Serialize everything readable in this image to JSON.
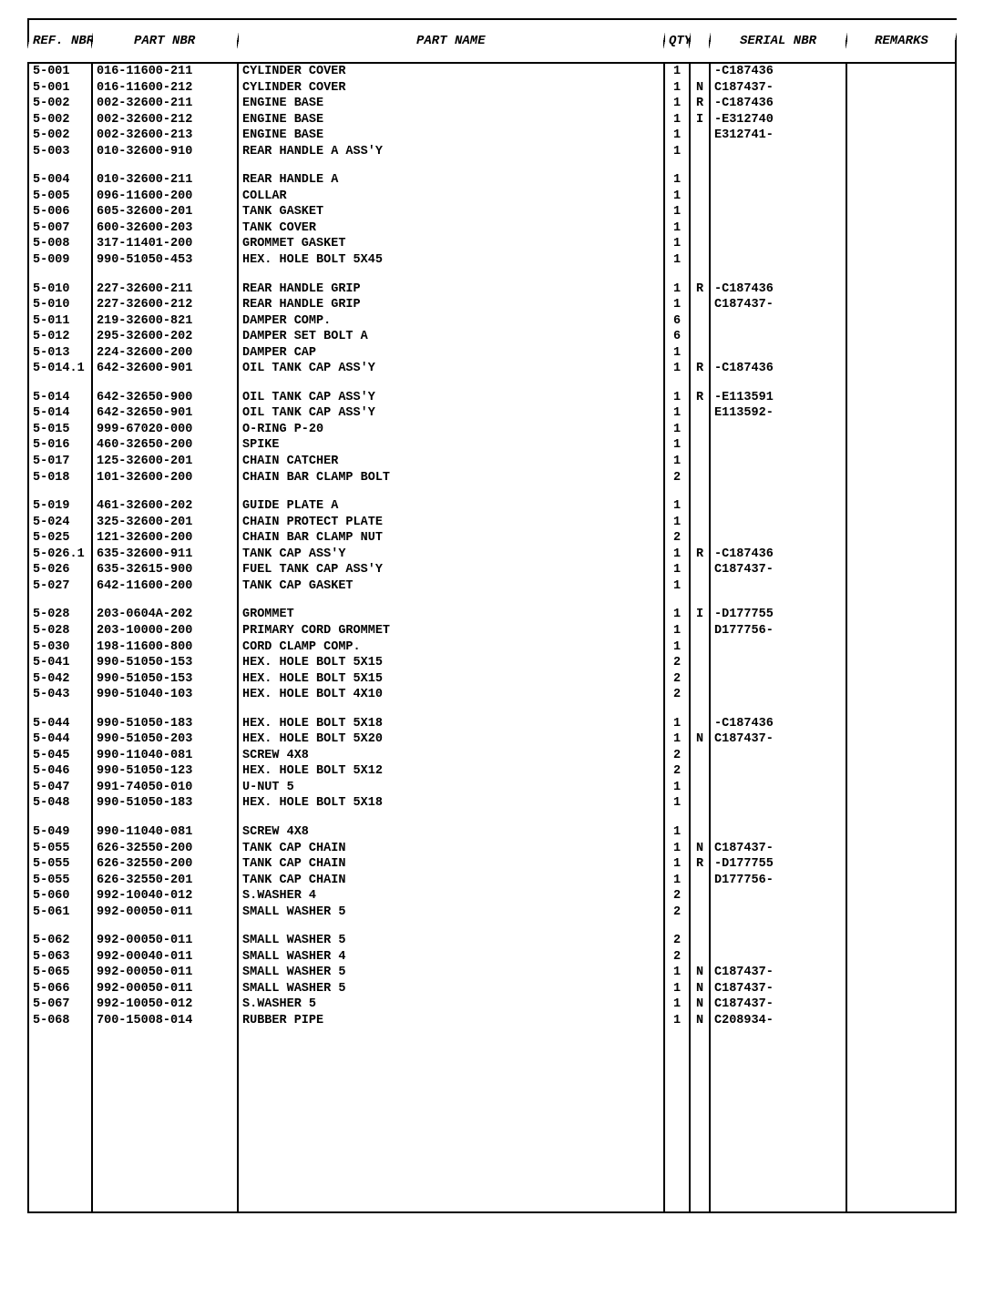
{
  "headers": {
    "ref": "REF. NBR",
    "part": "PART NBR",
    "name": "PART NAME",
    "qty": "QTY",
    "flag": "",
    "serial": "SERIAL NBR",
    "remarks": "REMARKS"
  },
  "groups": [
    [
      {
        "ref": "5-001",
        "part": "016-11600-211",
        "name": "CYLINDER COVER",
        "qty": "1",
        "flag": "",
        "serial": "-C187436"
      },
      {
        "ref": "5-001",
        "part": "016-11600-212",
        "name": "CYLINDER COVER",
        "qty": "1",
        "flag": "N",
        "serial": "C187437-"
      },
      {
        "ref": "5-002",
        "part": "002-32600-211",
        "name": "ENGINE BASE",
        "qty": "1",
        "flag": "R",
        "serial": "-C187436"
      },
      {
        "ref": "5-002",
        "part": "002-32600-212",
        "name": "ENGINE BASE",
        "qty": "1",
        "flag": "I",
        "serial": "-E312740"
      },
      {
        "ref": "5-002",
        "part": "002-32600-213",
        "name": "ENGINE BASE",
        "qty": "1",
        "flag": "",
        "serial": "E312741-"
      },
      {
        "ref": "5-003",
        "part": "010-32600-910",
        "name": "REAR HANDLE A ASS'Y",
        "qty": "1",
        "flag": "",
        "serial": ""
      }
    ],
    [
      {
        "ref": "5-004",
        "part": "010-32600-211",
        "name": "REAR HANDLE A",
        "qty": "1",
        "flag": "",
        "serial": ""
      },
      {
        "ref": "5-005",
        "part": "096-11600-200",
        "name": "COLLAR",
        "qty": "1",
        "flag": "",
        "serial": ""
      },
      {
        "ref": "5-006",
        "part": "605-32600-201",
        "name": "TANK GASKET",
        "qty": "1",
        "flag": "",
        "serial": ""
      },
      {
        "ref": "5-007",
        "part": "600-32600-203",
        "name": "TANK COVER",
        "qty": "1",
        "flag": "",
        "serial": ""
      },
      {
        "ref": "5-008",
        "part": "317-11401-200",
        "name": "GROMMET GASKET",
        "qty": "1",
        "flag": "",
        "serial": ""
      },
      {
        "ref": "5-009",
        "part": "990-51050-453",
        "name": "HEX. HOLE BOLT 5X45",
        "qty": "1",
        "flag": "",
        "serial": ""
      }
    ],
    [
      {
        "ref": "5-010",
        "part": "227-32600-211",
        "name": "REAR HANDLE GRIP",
        "qty": "1",
        "flag": "R",
        "serial": "-C187436"
      },
      {
        "ref": "5-010",
        "part": "227-32600-212",
        "name": "REAR HANDLE GRIP",
        "qty": "1",
        "flag": "",
        "serial": "C187437-"
      },
      {
        "ref": "5-011",
        "part": "219-32600-821",
        "name": "DAMPER COMP.",
        "qty": "6",
        "flag": "",
        "serial": ""
      },
      {
        "ref": "5-012",
        "part": "295-32600-202",
        "name": "DAMPER SET BOLT A",
        "qty": "6",
        "flag": "",
        "serial": ""
      },
      {
        "ref": "5-013",
        "part": "224-32600-200",
        "name": "DAMPER CAP",
        "qty": "1",
        "flag": "",
        "serial": ""
      },
      {
        "ref": "5-014.1",
        "part": "642-32600-901",
        "name": "OIL TANK CAP ASS'Y",
        "qty": "1",
        "flag": "R",
        "serial": "-C187436"
      }
    ],
    [
      {
        "ref": "5-014",
        "part": "642-32650-900",
        "name": "OIL TANK CAP ASS'Y",
        "qty": "1",
        "flag": "R",
        "serial": "-E113591"
      },
      {
        "ref": "5-014",
        "part": "642-32650-901",
        "name": "OIL TANK CAP ASS'Y",
        "qty": "1",
        "flag": "",
        "serial": "E113592-"
      },
      {
        "ref": "5-015",
        "part": "999-67020-000",
        "name": "O-RING P-20",
        "qty": "1",
        "flag": "",
        "serial": ""
      },
      {
        "ref": "5-016",
        "part": "460-32650-200",
        "name": "SPIKE",
        "qty": "1",
        "flag": "",
        "serial": ""
      },
      {
        "ref": "5-017",
        "part": "125-32600-201",
        "name": "CHAIN CATCHER",
        "qty": "1",
        "flag": "",
        "serial": ""
      },
      {
        "ref": "5-018",
        "part": "101-32600-200",
        "name": "CHAIN BAR CLAMP BOLT",
        "qty": "2",
        "flag": "",
        "serial": ""
      }
    ],
    [
      {
        "ref": "5-019",
        "part": "461-32600-202",
        "name": "GUIDE PLATE A",
        "qty": "1",
        "flag": "",
        "serial": ""
      },
      {
        "ref": "5-024",
        "part": "325-32600-201",
        "name": "CHAIN PROTECT PLATE",
        "qty": "1",
        "flag": "",
        "serial": ""
      },
      {
        "ref": "5-025",
        "part": "121-32600-200",
        "name": "CHAIN BAR CLAMP NUT",
        "qty": "2",
        "flag": "",
        "serial": ""
      },
      {
        "ref": "5-026.1",
        "part": "635-32600-911",
        "name": "TANK CAP ASS'Y",
        "qty": "1",
        "flag": "R",
        "serial": "-C187436"
      },
      {
        "ref": "5-026",
        "part": "635-32615-900",
        "name": "FUEL TANK CAP ASS'Y",
        "qty": "1",
        "flag": "",
        "serial": "C187437-"
      },
      {
        "ref": "5-027",
        "part": "642-11600-200",
        "name": "TANK CAP GASKET",
        "qty": "1",
        "flag": "",
        "serial": ""
      }
    ],
    [
      {
        "ref": "5-028",
        "part": "203-0604A-202",
        "name": "GROMMET",
        "qty": "1",
        "flag": "I",
        "serial": "-D177755"
      },
      {
        "ref": "5-028",
        "part": "203-10000-200",
        "name": "PRIMARY CORD GROMMET",
        "qty": "1",
        "flag": "",
        "serial": "D177756-"
      },
      {
        "ref": "5-030",
        "part": "198-11600-800",
        "name": "CORD CLAMP COMP.",
        "qty": "1",
        "flag": "",
        "serial": ""
      },
      {
        "ref": "5-041",
        "part": "990-51050-153",
        "name": "HEX. HOLE BOLT 5X15",
        "qty": "2",
        "flag": "",
        "serial": ""
      },
      {
        "ref": "5-042",
        "part": "990-51050-153",
        "name": "HEX. HOLE BOLT 5X15",
        "qty": "2",
        "flag": "",
        "serial": ""
      },
      {
        "ref": "5-043",
        "part": "990-51040-103",
        "name": "HEX. HOLE BOLT 4X10",
        "qty": "2",
        "flag": "",
        "serial": ""
      }
    ],
    [
      {
        "ref": "5-044",
        "part": "990-51050-183",
        "name": "HEX. HOLE BOLT 5X18",
        "qty": "1",
        "flag": "",
        "serial": "-C187436"
      },
      {
        "ref": "5-044",
        "part": "990-51050-203",
        "name": "HEX. HOLE BOLT 5X20",
        "qty": "1",
        "flag": "N",
        "serial": "C187437-"
      },
      {
        "ref": "5-045",
        "part": "990-11040-081",
        "name": "SCREW 4X8",
        "qty": "2",
        "flag": "",
        "serial": ""
      },
      {
        "ref": "5-046",
        "part": "990-51050-123",
        "name": "HEX. HOLE BOLT 5X12",
        "qty": "2",
        "flag": "",
        "serial": ""
      },
      {
        "ref": "5-047",
        "part": "991-74050-010",
        "name": "U-NUT 5",
        "qty": "1",
        "flag": "",
        "serial": ""
      },
      {
        "ref": "5-048",
        "part": "990-51050-183",
        "name": "HEX. HOLE BOLT 5X18",
        "qty": "1",
        "flag": "",
        "serial": ""
      }
    ],
    [
      {
        "ref": "5-049",
        "part": "990-11040-081",
        "name": "SCREW 4X8",
        "qty": "1",
        "flag": "",
        "serial": ""
      },
      {
        "ref": "5-055",
        "part": "626-32550-200",
        "name": "TANK CAP CHAIN",
        "qty": "1",
        "flag": "N",
        "serial": "C187437-"
      },
      {
        "ref": "5-055",
        "part": "626-32550-200",
        "name": "TANK CAP CHAIN",
        "qty": "1",
        "flag": "R",
        "serial": "-D177755"
      },
      {
        "ref": "5-055",
        "part": "626-32550-201",
        "name": "TANK CAP CHAIN",
        "qty": "1",
        "flag": "",
        "serial": "D177756-"
      },
      {
        "ref": "5-060",
        "part": "992-10040-012",
        "name": "S.WASHER 4",
        "qty": "2",
        "flag": "",
        "serial": ""
      },
      {
        "ref": "5-061",
        "part": "992-00050-011",
        "name": "SMALL WASHER 5",
        "qty": "2",
        "flag": "",
        "serial": ""
      }
    ],
    [
      {
        "ref": "5-062",
        "part": "992-00050-011",
        "name": "SMALL WASHER 5",
        "qty": "2",
        "flag": "",
        "serial": ""
      },
      {
        "ref": "5-063",
        "part": "992-00040-011",
        "name": "SMALL WASHER 4",
        "qty": "2",
        "flag": "",
        "serial": ""
      },
      {
        "ref": "5-065",
        "part": "992-00050-011",
        "name": "SMALL WASHER 5",
        "qty": "1",
        "flag": "N",
        "serial": "C187437-"
      },
      {
        "ref": "5-066",
        "part": "992-00050-011",
        "name": "SMALL WASHER 5",
        "qty": "1",
        "flag": "N",
        "serial": "C187437-"
      },
      {
        "ref": "5-067",
        "part": "992-10050-012",
        "name": "S.WASHER 5",
        "qty": "1",
        "flag": "N",
        "serial": "C187437-"
      },
      {
        "ref": "5-068",
        "part": "700-15008-014",
        "name": "RUBBER PIPE",
        "qty": "1",
        "flag": "N",
        "serial": "C208934-"
      }
    ]
  ]
}
